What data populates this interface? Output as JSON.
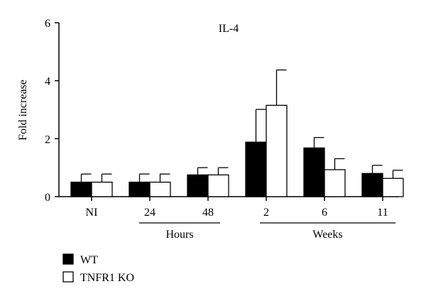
{
  "chart_data": {
    "type": "bar",
    "title": "IL-4",
    "ylabel": "Fold increase",
    "xlabel": "",
    "ylim": [
      0,
      6
    ],
    "yticks": [
      0,
      2,
      4,
      6
    ],
    "categories": [
      "NI",
      "24",
      "48",
      "2",
      "6",
      "11"
    ],
    "groups": [
      {
        "label": "Hours",
        "categories": [
          "24",
          "48"
        ]
      },
      {
        "label": "Weeks",
        "categories": [
          "2",
          "6",
          "11"
        ]
      }
    ],
    "series": [
      {
        "name": "WT",
        "color": "#000000",
        "values": [
          0.5,
          0.5,
          0.75,
          1.88,
          1.68,
          0.8
        ],
        "errors": [
          0.28,
          0.28,
          0.25,
          1.13,
          0.36,
          0.28
        ]
      },
      {
        "name": "TNFR1 KO",
        "color": "#ffffff",
        "values": [
          0.5,
          0.5,
          0.75,
          3.15,
          0.93,
          0.63
        ],
        "errors": [
          0.28,
          0.28,
          0.25,
          1.22,
          0.38,
          0.28
        ]
      }
    ],
    "legend": "bottom-left"
  }
}
